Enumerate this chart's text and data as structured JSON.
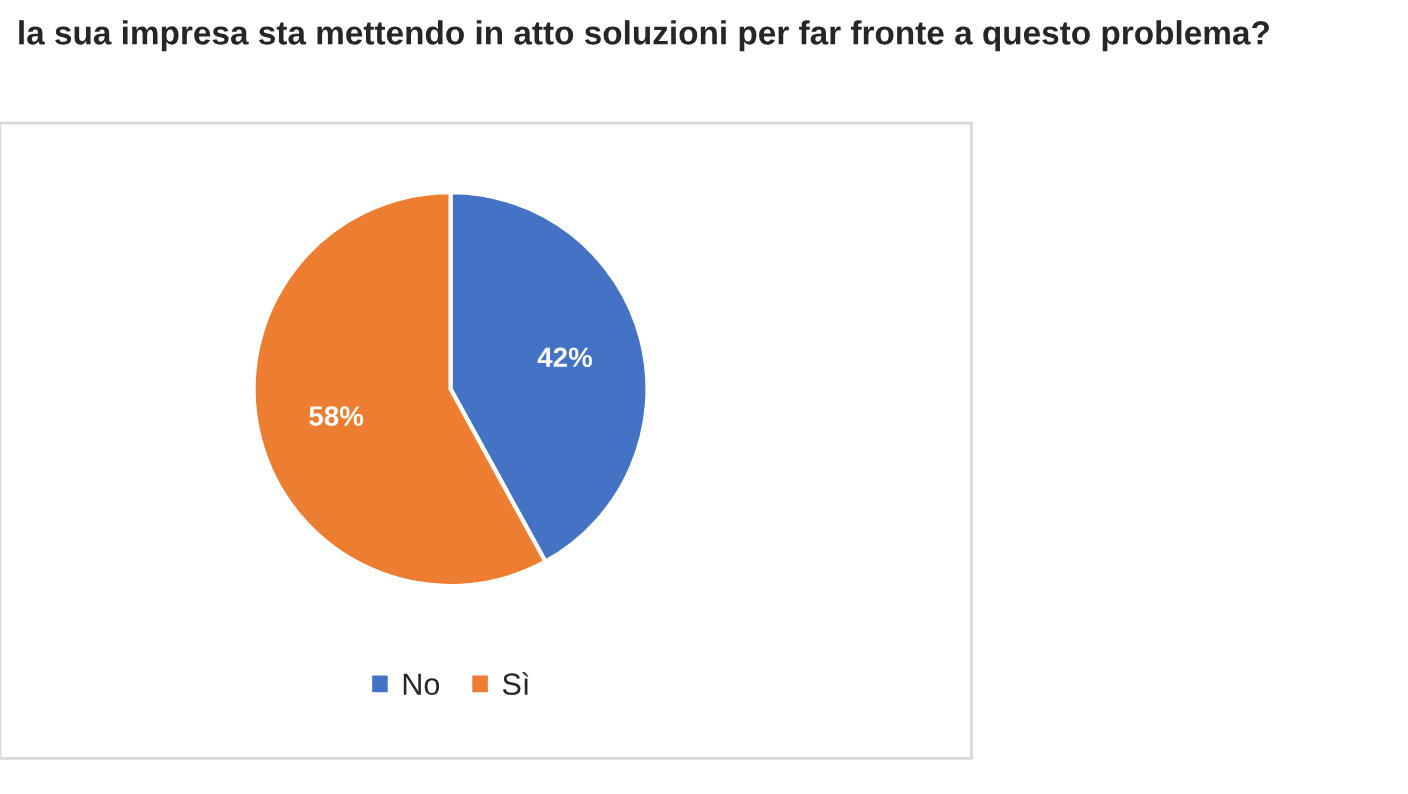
{
  "chart_data": {
    "type": "pie",
    "title": "la sua impresa sta mettendo in atto soluzioni per far fronte a questo problema?",
    "categories": [
      "No",
      "Sì"
    ],
    "values": [
      42,
      58
    ],
    "colors": [
      "#4472c4",
      "#ed7d31"
    ],
    "value_labels": [
      "42%",
      "58%"
    ],
    "legend": "bottom"
  }
}
